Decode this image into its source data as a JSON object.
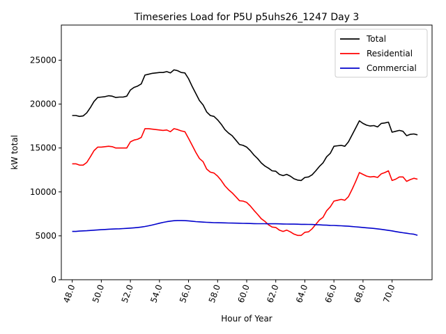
{
  "chart_data": {
    "type": "line",
    "title": "Timeseries Load for P5U p5uhs26_1247  Day 3",
    "xlabel": "Hour of Year",
    "ylabel": "kW total",
    "xlim": [
      47.25,
      72.75
    ],
    "ylim": [
      0,
      29000
    ],
    "xticks": [
      48,
      50,
      52,
      54,
      56,
      58,
      60,
      62,
      64,
      66,
      68,
      70
    ],
    "xtick_labels": [
      "48.0",
      "50.0",
      "52.0",
      "54.0",
      "56.0",
      "58.0",
      "60.0",
      "62.0",
      "64.0",
      "66.0",
      "68.0",
      "70.0"
    ],
    "yticks": [
      0,
      5000,
      10000,
      15000,
      20000,
      25000
    ],
    "ytick_labels": [
      "0",
      "5000",
      "10000",
      "15000",
      "20000",
      "25000"
    ],
    "grid": false,
    "legend_position": "top-right",
    "x": [
      48.0,
      48.25,
      48.5,
      48.75,
      49.0,
      49.25,
      49.5,
      49.75,
      50.0,
      50.25,
      50.5,
      50.75,
      51.0,
      51.25,
      51.5,
      51.75,
      52.0,
      52.25,
      52.5,
      52.75,
      53.0,
      53.25,
      53.5,
      53.75,
      54.0,
      54.25,
      54.5,
      54.75,
      55.0,
      55.25,
      55.5,
      55.75,
      56.0,
      56.25,
      56.5,
      56.75,
      57.0,
      57.25,
      57.5,
      57.75,
      58.0,
      58.25,
      58.5,
      58.75,
      59.0,
      59.25,
      59.5,
      59.75,
      60.0,
      60.25,
      60.5,
      60.75,
      61.0,
      61.25,
      61.5,
      61.75,
      62.0,
      62.25,
      62.5,
      62.75,
      63.0,
      63.25,
      63.5,
      63.75,
      64.0,
      64.25,
      64.5,
      64.75,
      65.0,
      65.25,
      65.5,
      65.75,
      66.0,
      66.25,
      66.5,
      66.75,
      67.0,
      67.25,
      67.5,
      67.75,
      68.0,
      68.25,
      68.5,
      68.75,
      69.0,
      69.25,
      69.5,
      69.75,
      70.0,
      70.25,
      70.5,
      70.75,
      71.0,
      71.25,
      71.5,
      71.75
    ],
    "series": [
      {
        "name": "Total",
        "color": "#000000",
        "values": [
          18700,
          18700,
          18600,
          18650,
          19000,
          19600,
          20300,
          20750,
          20800,
          20850,
          20950,
          20900,
          20750,
          20800,
          20800,
          20900,
          21600,
          21900,
          22050,
          22300,
          23300,
          23400,
          23500,
          23550,
          23600,
          23600,
          23700,
          23550,
          23900,
          23800,
          23600,
          23550,
          22900,
          22000,
          21200,
          20400,
          19900,
          19100,
          18700,
          18600,
          18200,
          17700,
          17100,
          16700,
          16400,
          15900,
          15400,
          15300,
          15100,
          14700,
          14200,
          13800,
          13300,
          12950,
          12700,
          12400,
          12350,
          12000,
          11850,
          12000,
          11800,
          11500,
          11350,
          11300,
          11650,
          11700,
          11950,
          12400,
          12900,
          13300,
          14000,
          14400,
          15200,
          15250,
          15300,
          15200,
          15700,
          16500,
          17300,
          18100,
          17800,
          17600,
          17500,
          17550,
          17400,
          17800,
          17850,
          17950,
          16800,
          16900,
          17000,
          16900,
          16400,
          16550,
          16600,
          16500
        ]
      },
      {
        "name": "Residential",
        "color": "#ff0000",
        "values": [
          13200,
          13200,
          13050,
          13050,
          13350,
          14000,
          14700,
          15100,
          15100,
          15150,
          15200,
          15150,
          15000,
          15000,
          15000,
          15000,
          15700,
          15900,
          16000,
          16200,
          17200,
          17200,
          17150,
          17100,
          17050,
          17000,
          17050,
          16850,
          17200,
          17100,
          16950,
          16850,
          16100,
          15300,
          14500,
          13800,
          13450,
          12600,
          12250,
          12150,
          11800,
          11300,
          10700,
          10250,
          9900,
          9450,
          9000,
          8950,
          8800,
          8400,
          7900,
          7450,
          6950,
          6650,
          6250,
          6000,
          5950,
          5650,
          5500,
          5650,
          5450,
          5200,
          5050,
          5050,
          5400,
          5450,
          5800,
          6300,
          6800,
          7100,
          7850,
          8300,
          8950,
          9050,
          9150,
          9050,
          9450,
          10300,
          11200,
          12200,
          12000,
          11800,
          11700,
          11750,
          11650,
          12050,
          12200,
          12400,
          11300,
          11450,
          11700,
          11700,
          11200,
          11400,
          11550,
          11450
        ]
      },
      {
        "name": "Commercial",
        "color": "#0000cc",
        "values": [
          5500,
          5500,
          5540,
          5560,
          5580,
          5610,
          5640,
          5670,
          5700,
          5720,
          5750,
          5770,
          5790,
          5800,
          5820,
          5850,
          5880,
          5910,
          5950,
          6000,
          6060,
          6140,
          6230,
          6330,
          6430,
          6530,
          6610,
          6670,
          6720,
          6740,
          6740,
          6730,
          6700,
          6660,
          6620,
          6590,
          6560,
          6540,
          6520,
          6500,
          6490,
          6480,
          6470,
          6460,
          6450,
          6440,
          6430,
          6420,
          6410,
          6400,
          6390,
          6380,
          6380,
          6380,
          6370,
          6370,
          6370,
          6360,
          6350,
          6340,
          6330,
          6330,
          6320,
          6310,
          6310,
          6300,
          6290,
          6270,
          6250,
          6230,
          6210,
          6190,
          6180,
          6160,
          6140,
          6120,
          6090,
          6050,
          6020,
          5990,
          5950,
          5910,
          5880,
          5840,
          5790,
          5740,
          5680,
          5620,
          5560,
          5480,
          5410,
          5350,
          5290,
          5230,
          5180,
          5060
        ]
      }
    ]
  }
}
